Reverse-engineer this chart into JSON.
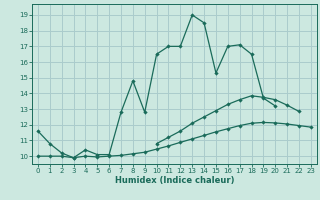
{
  "xlabel": "Humidex (Indice chaleur)",
  "xlim": [
    -0.5,
    23.5
  ],
  "ylim": [
    9.5,
    19.7
  ],
  "bg_color": "#cce8e0",
  "grid_color": "#aacccc",
  "line_color": "#1a6b5a",
  "xticks": [
    0,
    1,
    2,
    3,
    4,
    5,
    6,
    7,
    8,
    9,
    10,
    11,
    12,
    13,
    14,
    15,
    16,
    17,
    18,
    19,
    20,
    21,
    22,
    23
  ],
  "yticks": [
    10,
    11,
    12,
    13,
    14,
    15,
    16,
    17,
    18,
    19
  ],
  "series1_x": [
    0,
    1,
    2,
    3,
    4,
    5,
    6,
    7,
    8,
    9,
    10,
    11,
    12,
    13,
    14,
    15,
    16,
    17,
    18,
    19,
    20,
    21,
    22,
    23
  ],
  "series1_y": [
    11.6,
    10.8,
    10.2,
    9.9,
    10.4,
    10.1,
    10.1,
    12.8,
    14.8,
    12.8,
    16.5,
    17.0,
    17.0,
    19.0,
    18.5,
    15.3,
    17.0,
    17.1,
    16.5,
    13.7,
    13.2,
    null,
    null,
    null
  ],
  "series2_x": [
    0,
    1,
    2,
    3,
    4,
    5,
    6,
    7,
    8,
    9,
    10,
    11,
    12,
    13,
    14,
    15,
    16,
    17,
    18,
    19,
    20,
    21,
    22,
    23
  ],
  "series2_y": [
    null,
    null,
    null,
    null,
    null,
    null,
    null,
    null,
    null,
    null,
    10.8,
    11.2,
    11.6,
    12.1,
    12.5,
    12.9,
    13.3,
    13.6,
    13.85,
    13.75,
    13.6,
    13.25,
    12.85,
    null
  ],
  "series3_x": [
    0,
    1,
    2,
    3,
    4,
    5,
    6,
    7,
    8,
    9,
    10,
    11,
    12,
    13,
    14,
    15,
    16,
    17,
    18,
    19,
    20,
    21,
    22,
    23
  ],
  "series3_y": [
    10.0,
    10.0,
    10.0,
    9.9,
    10.0,
    9.95,
    10.0,
    10.05,
    10.15,
    10.25,
    10.45,
    10.65,
    10.88,
    11.1,
    11.32,
    11.55,
    11.75,
    11.95,
    12.1,
    12.15,
    12.12,
    12.05,
    11.95,
    11.85
  ]
}
